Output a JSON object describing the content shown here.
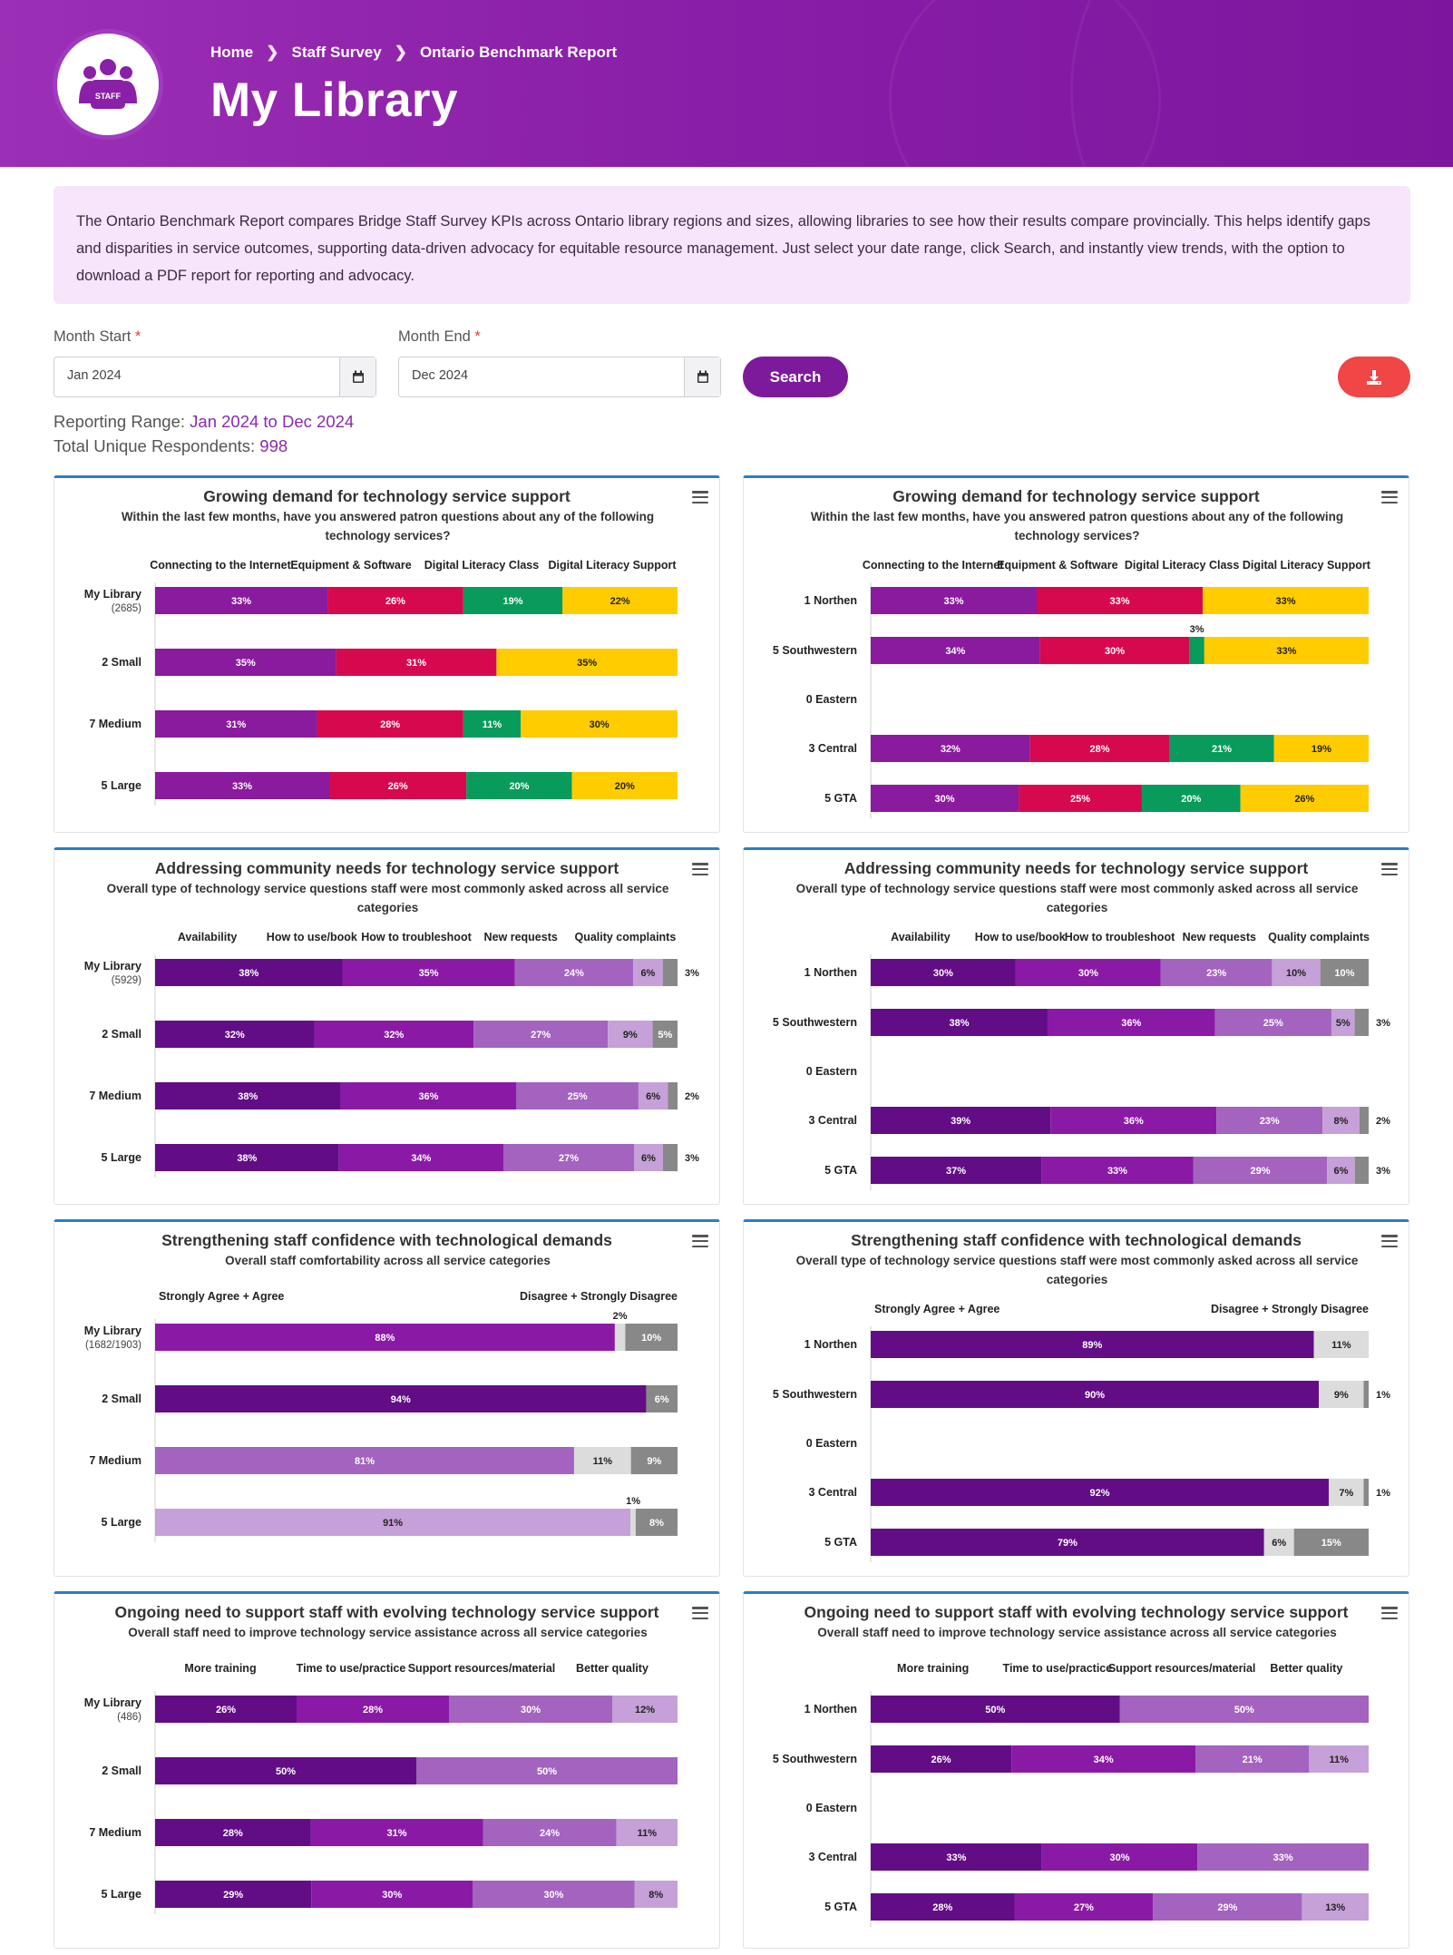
{
  "header": {
    "breadcrumbs": [
      "Home",
      "Staff Survey",
      "Ontario Benchmark Report"
    ],
    "title": "My Library",
    "logo_text": "STAFF"
  },
  "intro": "The Ontario Benchmark Report compares Bridge Staff Survey KPIs across Ontario library regions and sizes, allowing libraries to see how their results compare provincially. This helps identify gaps and disparities in service outcomes, supporting data-driven advocacy for equitable resource management. Just select your date range, click Search, and instantly view trends, with the option to download a PDF report for reporting and advocacy.",
  "filters": {
    "month_start_label": "Month Start",
    "month_start_value": "Jan 2024",
    "month_end_label": "Month End",
    "month_end_value": "Dec 2024",
    "required_mark": "*",
    "search_label": "Search"
  },
  "summary": {
    "range_label": "Reporting Range:",
    "range_value": "Jan 2024 to Dec 2024",
    "respondents_label": "Total Unique Respondents:",
    "respondents_value": "998"
  },
  "colors": {
    "purple": "#8a1a9e",
    "crimson": "#d6094f",
    "green": "#089b5c",
    "yellow": "#ffcc00",
    "dkpurple": "#620d86",
    "mdpurple": "#8a1aa6",
    "ltpurple": "#a363bf",
    "lavender": "#c6a0d8",
    "gray": "#888888",
    "ltgray": "#dcdcdc"
  },
  "chart_data": [
    {
      "type": "bar",
      "stacked": "horizontal",
      "title": "Growing demand for technology service support",
      "subtitle": "Within the last few months, have you answered patron questions about any of the following technology services?",
      "legend": [
        "Connecting to the Internet",
        "Equipment & Software",
        "Digital Literacy Class",
        "Digital Literacy Support"
      ],
      "series_colors": [
        "purple",
        "crimson",
        "green",
        "yellow"
      ],
      "categories": [
        {
          "name": "My Library",
          "sub": "(2685)"
        },
        {
          "name": "2 Small"
        },
        {
          "name": "7 Medium"
        },
        {
          "name": "5 Large"
        }
      ],
      "values": [
        [
          33,
          26,
          19,
          22
        ],
        [
          35,
          31,
          0,
          35
        ],
        [
          31,
          28,
          11,
          30
        ],
        [
          33,
          26,
          20,
          20
        ]
      ]
    },
    {
      "type": "bar",
      "stacked": "horizontal",
      "title": "Growing demand for technology service support",
      "subtitle": "Within the last few months, have you answered patron questions about any of the following technology services?",
      "legend": [
        "Connecting to the Internet",
        "Equipment & Software",
        "Digital Literacy Class",
        "Digital Literacy Support"
      ],
      "series_colors": [
        "purple",
        "crimson",
        "green",
        "yellow"
      ],
      "categories": [
        {
          "name": "1 Northen"
        },
        {
          "name": "5 Southwestern"
        },
        {
          "name": "0 Eastern"
        },
        {
          "name": "3 Central"
        },
        {
          "name": "5 GTA"
        }
      ],
      "values": [
        [
          33,
          33,
          0,
          33
        ],
        [
          34,
          30,
          3,
          33
        ],
        [
          0,
          0,
          0,
          0
        ],
        [
          32,
          28,
          21,
          19
        ],
        [
          30,
          25,
          20,
          26
        ]
      ]
    },
    {
      "type": "bar",
      "stacked": "horizontal",
      "title": "Addressing community needs for technology service support",
      "subtitle": "Overall type of technology service questions staff were most commonly asked across all service categories",
      "legend": [
        "Availability",
        "How to use/book",
        "How to troubleshoot",
        "New requests",
        "Quality complaints"
      ],
      "series_colors": [
        "dkpurple",
        "mdpurple",
        "ltpurple",
        "lavender",
        "gray"
      ],
      "categories": [
        {
          "name": "My Library",
          "sub": "(5929)"
        },
        {
          "name": "2 Small"
        },
        {
          "name": "7 Medium"
        },
        {
          "name": "5 Large"
        }
      ],
      "values": [
        [
          38,
          35,
          24,
          6,
          3
        ],
        [
          32,
          32,
          27,
          9,
          5
        ],
        [
          38,
          36,
          25,
          6,
          2
        ],
        [
          38,
          34,
          27,
          6,
          3
        ]
      ]
    },
    {
      "type": "bar",
      "stacked": "horizontal",
      "title": "Addressing community needs for technology service support",
      "subtitle": "Overall type of technology service questions staff were most commonly asked across all service categories",
      "legend": [
        "Availability",
        "How to use/book",
        "How to troubleshoot",
        "New requests",
        "Quality complaints"
      ],
      "series_colors": [
        "dkpurple",
        "mdpurple",
        "ltpurple",
        "lavender",
        "gray"
      ],
      "categories": [
        {
          "name": "1 Northen"
        },
        {
          "name": "5 Southwestern"
        },
        {
          "name": "0 Eastern"
        },
        {
          "name": "3 Central"
        },
        {
          "name": "5 GTA"
        }
      ],
      "values": [
        [
          30,
          30,
          23,
          10,
          10
        ],
        [
          38,
          36,
          25,
          5,
          3
        ],
        [
          0,
          0,
          0,
          0,
          0
        ],
        [
          39,
          36,
          23,
          8,
          2
        ],
        [
          37,
          33,
          29,
          6,
          3
        ]
      ]
    },
    {
      "type": "bar",
      "stacked": "horizontal",
      "title": "Strengthening staff confidence with technological demands",
      "subtitle": "Overall staff comfortability across all service categories",
      "legend": [
        "Strongly Agree + Agree",
        "Disagree + Strongly Disagree"
      ],
      "legend_mode": "ends",
      "row_colors": [
        [
          "mdpurple",
          "ltgray",
          "gray"
        ],
        [
          "dkpurple",
          "ltgray",
          "gray"
        ],
        [
          "ltpurple",
          "ltgray",
          "gray"
        ],
        [
          "lavender",
          "ltgray",
          "gray"
        ]
      ],
      "categories": [
        {
          "name": "My Library",
          "sub": "(1682/1903)"
        },
        {
          "name": "2 Small"
        },
        {
          "name": "7 Medium"
        },
        {
          "name": "5 Large"
        }
      ],
      "values": [
        [
          88,
          2,
          10
        ],
        [
          94,
          0,
          6
        ],
        [
          81,
          11,
          9
        ],
        [
          91,
          1,
          8
        ]
      ]
    },
    {
      "type": "bar",
      "stacked": "horizontal",
      "title": "Strengthening staff confidence with technological demands",
      "subtitle": "Overall type of technology service questions staff were most commonly asked across all service categories",
      "legend": [
        "Strongly Agree + Agree",
        "Disagree + Strongly Disagree"
      ],
      "legend_mode": "ends",
      "series_colors": [
        "dkpurple",
        "ltgray",
        "gray"
      ],
      "categories": [
        {
          "name": "1 Northen"
        },
        {
          "name": "5 Southwestern"
        },
        {
          "name": "0 Eastern"
        },
        {
          "name": "3 Central"
        },
        {
          "name": "5 GTA"
        }
      ],
      "values": [
        [
          89,
          11,
          0
        ],
        [
          90,
          9,
          1
        ],
        [
          0,
          0,
          0
        ],
        [
          92,
          7,
          1
        ],
        [
          79,
          6,
          15
        ]
      ]
    },
    {
      "type": "bar",
      "stacked": "horizontal",
      "title": "Ongoing need to support staff with evolving technology service support",
      "subtitle": "Overall staff need to improve technology service assistance across all service categories",
      "legend": [
        "More training",
        "Time to use/practice",
        "Support resources/material",
        "Better quality"
      ],
      "series_colors": [
        "dkpurple",
        "mdpurple",
        "ltpurple",
        "lavender"
      ],
      "categories": [
        {
          "name": "My Library",
          "sub": "(486)"
        },
        {
          "name": "2 Small"
        },
        {
          "name": "7 Medium"
        },
        {
          "name": "5 Large"
        }
      ],
      "values": [
        [
          26,
          28,
          30,
          12
        ],
        [
          50,
          0,
          50,
          0
        ],
        [
          28,
          31,
          24,
          11
        ],
        [
          29,
          30,
          30,
          8
        ]
      ]
    },
    {
      "type": "bar",
      "stacked": "horizontal",
      "title": "Ongoing need to support staff with evolving technology service support",
      "subtitle": "Overall staff need to improve technology service assistance across all service categories",
      "legend": [
        "More training",
        "Time to use/practice",
        "Support resources/material",
        "Better quality"
      ],
      "series_colors": [
        "dkpurple",
        "mdpurple",
        "ltpurple",
        "lavender"
      ],
      "categories": [
        {
          "name": "1 Northen"
        },
        {
          "name": "5 Southwestern"
        },
        {
          "name": "0 Eastern"
        },
        {
          "name": "3 Central"
        },
        {
          "name": "5 GTA"
        }
      ],
      "values": [
        [
          50,
          0,
          50,
          0
        ],
        [
          26,
          34,
          21,
          11
        ],
        [
          0,
          0,
          0,
          0
        ],
        [
          33,
          30,
          33,
          0
        ],
        [
          28,
          27,
          29,
          13
        ]
      ]
    }
  ]
}
